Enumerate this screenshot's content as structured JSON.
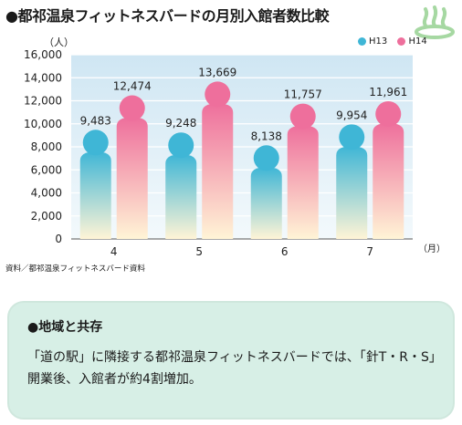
{
  "header": {
    "title": "●都祁温泉フィットネスバードの月別入館者数比較"
  },
  "decoration": {
    "logo_icon": "hot-spring-icon"
  },
  "chart_data": {
    "type": "bar",
    "unit_label": "（人）",
    "x_unit_label": "（月）",
    "categories": [
      "4",
      "5",
      "6",
      "7"
    ],
    "series": [
      {
        "name": "H13",
        "values": [
          9483,
          9248,
          8138,
          9954
        ],
        "value_labels": [
          "9,483",
          "9,248",
          "8,138",
          "9,954"
        ],
        "color": "#3fb6d6"
      },
      {
        "name": "H14",
        "values": [
          12474,
          13669,
          11757,
          11961
        ],
        "value_labels": [
          "12,474",
          "13,669",
          "11,757",
          "11,961"
        ],
        "color": "#ee6f9c"
      }
    ],
    "yticks": [
      "0",
      "2,000",
      "4,000",
      "6,000",
      "8,000",
      "10,000",
      "12,000",
      "14,000",
      "16,000"
    ],
    "ylim": [
      0,
      16000
    ],
    "grid": true,
    "legend_position": "top-right",
    "source": "資料／都祁温泉フィットネスバード資料"
  },
  "callout": {
    "title": "●地域と共存",
    "body": "「道の駅」に隣接する都祁温泉フィットネスバードでは、「針T・R・S」開業後、入館者が約4割増加。"
  }
}
